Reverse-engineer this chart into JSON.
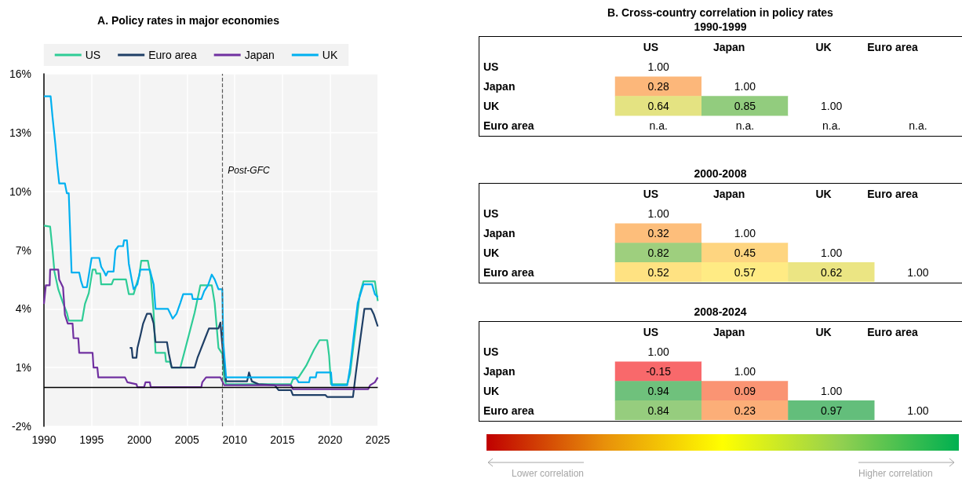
{
  "chart_data": [
    {
      "type": "line",
      "title": "A. Policy rates in major economies",
      "xlim": [
        1990,
        2025
      ],
      "xticks": [
        1990,
        1995,
        2000,
        2005,
        2010,
        2015,
        2020,
        2025
      ],
      "ylim": [
        -2,
        16
      ],
      "yticks": [
        {
          "value": -2,
          "label": "-2%"
        },
        {
          "value": 1,
          "label": "1%"
        },
        {
          "value": 4,
          "label": "4%"
        },
        {
          "value": 7,
          "label": "7%"
        },
        {
          "value": 10,
          "label": "10%"
        },
        {
          "value": 13,
          "label": "13%"
        },
        {
          "value": 16,
          "label": "16%"
        }
      ],
      "grid": true,
      "legend": "top",
      "ref_lines": [
        {
          "axis": "x",
          "value": 2008.7,
          "label": "Post-GFC",
          "color": "#595959",
          "line_style": "dashed"
        },
        {
          "axis": "y",
          "value": 0,
          "label": null,
          "color": "#000000",
          "line_style": "solid"
        }
      ],
      "series": [
        {
          "name": "US",
          "color": "#2ecc96",
          "x": [
            1990.0,
            1990.65,
            1990.9,
            1991.1,
            1991.5,
            1992.0,
            1992.4,
            1992.6,
            1994.0,
            1994.3,
            1994.7,
            1995.1,
            1995.4,
            1995.5,
            1995.9,
            1996.0,
            1997.1,
            1997.3,
            1998.6,
            1998.9,
            1999.4,
            1999.7,
            2000.0,
            2000.2,
            2000.9,
            2001.2,
            2001.5,
            2001.7,
            2002.7,
            2002.8,
            2003.2,
            2003.4,
            2004.3,
            2005.0,
            2005.8,
            2006.4,
            2007.6,
            2007.9,
            2008.3,
            2008.7,
            2008.9,
            2009.1,
            2015.9,
            2016.1,
            2016.7,
            2017.5,
            2018.3,
            2018.9,
            2019.7,
            2019.9,
            2020.1,
            2021.8,
            2022.1,
            2022.7,
            2023.1,
            2023.5,
            2024.7,
            2025.0
          ],
          "values": [
            8.25,
            8.2,
            7.0,
            5.9,
            5.0,
            4.3,
            3.8,
            3.4,
            3.4,
            4.25,
            4.8,
            6.0,
            6.0,
            5.8,
            5.8,
            5.25,
            5.25,
            5.5,
            5.5,
            4.75,
            4.75,
            5.25,
            5.7,
            6.45,
            6.45,
            5.65,
            3.8,
            1.75,
            1.75,
            1.3,
            1.3,
            1.0,
            1.0,
            2.3,
            3.8,
            5.2,
            5.2,
            4.3,
            2.0,
            1.7,
            0.4,
            0.15,
            0.15,
            0.4,
            0.5,
            1.1,
            1.9,
            2.4,
            2.4,
            1.6,
            0.15,
            0.15,
            0.7,
            3.1,
            4.7,
            5.4,
            5.4,
            4.4
          ]
        },
        {
          "name": "Euro area",
          "color": "#1f3f66",
          "x": [
            1999.0,
            1999.2,
            1999.3,
            1999.7,
            1999.8,
            2000.1,
            2000.4,
            2000.8,
            2001.2,
            2001.5,
            2001.7,
            2002.9,
            2003.1,
            2003.4,
            2005.8,
            2006.1,
            2006.9,
            2007.3,
            2008.3,
            2008.5,
            2008.8,
            2009.1,
            2011.3,
            2011.5,
            2011.8,
            2012.5,
            2014.2,
            2014.6,
            2015.9,
            2016.1,
            2019.5,
            2019.7,
            2022.4,
            2022.7,
            2023.1,
            2023.6,
            2024.3,
            2024.6,
            2025.0
          ],
          "values": [
            2.0,
            2.0,
            1.5,
            1.5,
            2.0,
            2.6,
            3.25,
            3.75,
            3.75,
            3.25,
            2.3,
            2.3,
            1.7,
            1.0,
            1.0,
            1.5,
            2.5,
            3.0,
            3.0,
            3.3,
            1.6,
            0.3,
            0.3,
            0.75,
            0.3,
            0.15,
            0.1,
            -0.15,
            -0.15,
            -0.4,
            -0.4,
            -0.5,
            -0.5,
            0.7,
            2.2,
            4.0,
            4.0,
            3.7,
            3.1
          ]
        },
        {
          "name": "Japan",
          "color": "#7030a0",
          "x": [
            1990.0,
            1990.2,
            1990.6,
            1990.65,
            1991.5,
            1991.6,
            1992.0,
            1992.1,
            1992.2,
            1992.5,
            1993.0,
            1993.1,
            1993.6,
            1993.7,
            1995.1,
            1995.2,
            1995.6,
            1995.7,
            1998.5,
            1998.75,
            1999.7,
            1999.8,
            2000.5,
            2000.65,
            2001.1,
            2001.2,
            2006.5,
            2006.6,
            2007.0,
            2008.5,
            2008.9,
            2015.9,
            2016.1,
            2024.0,
            2024.2,
            2024.7,
            2025.0
          ],
          "values": [
            4.25,
            5.2,
            5.2,
            6.0,
            6.0,
            5.5,
            5.1,
            4.4,
            3.7,
            3.25,
            3.25,
            2.5,
            2.5,
            1.75,
            1.75,
            1.0,
            1.0,
            0.5,
            0.5,
            0.25,
            0.15,
            0,
            0,
            0.25,
            0.25,
            0,
            0,
            0.25,
            0.5,
            0.5,
            0.1,
            0.1,
            -0.1,
            -0.1,
            0.1,
            0.25,
            0.5
          ]
        },
        {
          "name": "UK",
          "color": "#00b0f0",
          "x": [
            1990.0,
            1990.7,
            1990.9,
            1991.2,
            1991.4,
            1991.6,
            1992.2,
            1992.4,
            1992.6,
            1992.9,
            1993.7,
            1993.9,
            1994.1,
            1994.5,
            1995.0,
            1995.8,
            1996.0,
            1996.3,
            1996.5,
            1996.7,
            1997.3,
            1997.5,
            1997.8,
            1998.3,
            1998.4,
            1998.7,
            1998.9,
            1999.2,
            1999.4,
            1999.8,
            2000.1,
            2001.1,
            2001.5,
            2001.7,
            2003.0,
            2003.5,
            2003.9,
            2004.3,
            2004.6,
            2005.5,
            2005.6,
            2006.5,
            2006.8,
            2007.2,
            2007.6,
            2007.9,
            2008.3,
            2008.7,
            2008.8,
            2009.1,
            2016.4,
            2016.7,
            2017.8,
            2017.9,
            2018.5,
            2018.6,
            2020.1,
            2020.2,
            2021.8,
            2022.1,
            2022.5,
            2022.9,
            2023.5,
            2024.4,
            2024.7,
            2025.0
          ],
          "values": [
            14.85,
            14.85,
            13.8,
            12.4,
            11.3,
            10.4,
            10.4,
            9.9,
            9.9,
            5.85,
            5.85,
            5.4,
            5.1,
            5.1,
            6.6,
            6.6,
            6.15,
            5.9,
            5.7,
            5.9,
            5.9,
            7.0,
            7.2,
            7.2,
            7.5,
            7.5,
            6.3,
            5.5,
            5.0,
            5.25,
            6.0,
            6.0,
            5.25,
            4.0,
            4.0,
            3.5,
            3.75,
            4.3,
            4.75,
            4.75,
            4.5,
            4.5,
            4.9,
            5.2,
            5.75,
            5.5,
            5.0,
            5.0,
            2.3,
            0.5,
            0.5,
            0.25,
            0.25,
            0.5,
            0.5,
            0.75,
            0.75,
            0.1,
            0.1,
            1.0,
            2.7,
            4.3,
            5.25,
            5.25,
            4.75,
            4.6
          ]
        }
      ]
    },
    {
      "type": "heatmap",
      "title": "B. Cross-country correlation in policy rates",
      "subtitle": "1990-1999",
      "categories": [
        "US",
        "Japan",
        "UK",
        "Euro area"
      ],
      "y_categories": [
        "US",
        "Japan",
        "UK",
        "Euro area"
      ],
      "cells": [
        [
          1.0,
          null,
          null,
          null
        ],
        [
          0.28,
          1.0,
          null,
          null
        ],
        [
          0.64,
          0.85,
          1.0,
          null
        ],
        [
          null,
          null,
          null,
          null
        ]
      ],
      "cell_labels": [
        [
          "1.00",
          null,
          null,
          null
        ],
        [
          "0.28",
          "1.00",
          null,
          null
        ],
        [
          "0.64",
          "0.85",
          "1.00",
          null
        ],
        [
          "n.a.",
          "n.a.",
          "n.a.",
          "n.a."
        ]
      ]
    },
    {
      "type": "heatmap",
      "title": "2000-2008",
      "categories": [
        "US",
        "Japan",
        "UK",
        "Euro area"
      ],
      "y_categories": [
        "US",
        "Japan",
        "UK",
        "Euro area"
      ],
      "cells": [
        [
          1.0,
          null,
          null,
          null
        ],
        [
          0.32,
          1.0,
          null,
          null
        ],
        [
          0.82,
          0.45,
          1.0,
          null
        ],
        [
          0.52,
          0.57,
          0.62,
          1.0
        ]
      ],
      "cell_labels": [
        [
          "1.00",
          null,
          null,
          null
        ],
        [
          "0.32",
          "1.00",
          null,
          null
        ],
        [
          "0.82",
          "0.45",
          "1.00",
          null
        ],
        [
          "0.52",
          "0.57",
          "0.62",
          "1.00"
        ]
      ]
    },
    {
      "type": "heatmap",
      "title": "2008-2024",
      "categories": [
        "US",
        "Japan",
        "UK",
        "Euro area"
      ],
      "y_categories": [
        "US",
        "Japan",
        "UK",
        "Euro area"
      ],
      "cells": [
        [
          1.0,
          null,
          null,
          null
        ],
        [
          -0.15,
          1.0,
          null,
          null
        ],
        [
          0.94,
          0.09,
          1.0,
          null
        ],
        [
          0.84,
          0.23,
          0.97,
          1.0
        ]
      ],
      "cell_labels": [
        [
          "1.00",
          null,
          null,
          null
        ],
        [
          "-0.15",
          "1.00",
          null,
          null
        ],
        [
          "0.94",
          "0.09",
          "1.00",
          null
        ],
        [
          "0.84",
          "0.23",
          "0.97",
          "1.00"
        ]
      ],
      "annotations": [
        "Lower correlation",
        "Higher correlation"
      ]
    }
  ]
}
